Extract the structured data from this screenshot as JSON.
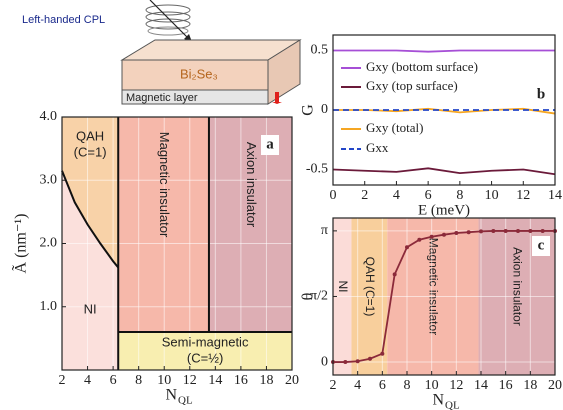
{
  "schematic": {
    "light_label": "Left-handed CPL",
    "material_label": "Bi₂Se₃",
    "layer_label": "Magnetic layer"
  },
  "chart_data": [
    {
      "type": "phase",
      "panel_label": "a",
      "xlabel": "N",
      "xlabel_sub": "QL",
      "ylabel": "Ã (nm⁻¹)",
      "xlim": [
        2,
        20
      ],
      "ylim": [
        0,
        4
      ],
      "grid": true,
      "xticks": [
        2,
        4,
        6,
        8,
        10,
        12,
        14,
        16,
        18,
        20
      ],
      "yticks": [
        {
          "value": 1,
          "label": "1.0"
        },
        {
          "value": 2,
          "label": "2.0"
        },
        {
          "value": 3,
          "label": "3.0"
        },
        {
          "value": 4,
          "label": "4.0"
        }
      ],
      "boundary_curve": {
        "x": [
          2,
          2.5,
          3,
          4,
          5,
          6,
          6.4
        ],
        "y": [
          3.15,
          2.9,
          2.65,
          2.3,
          2.0,
          1.72,
          1.62
        ]
      },
      "vertical_boundaries": [
        6.4,
        13.5
      ],
      "horizontal_boundary": 0.6,
      "regions": [
        {
          "label": [
            "QAH",
            "(C=1)"
          ],
          "color": "#f8d2a8"
        },
        {
          "label": [
            "NI"
          ],
          "color": "#fbe0dc"
        },
        {
          "label": [
            "Magnetic insulator"
          ],
          "color": "#f6b8aa"
        },
        {
          "label": [
            "Axion insulator"
          ],
          "color": "#ddaeb4"
        },
        {
          "label": [
            "Semi-magnetic",
            "(C=½)"
          ],
          "color": "#f8eeb0"
        }
      ]
    },
    {
      "type": "line",
      "panel_label": "b",
      "xlabel": "E (meV)",
      "ylabel": "G",
      "xlim": [
        0,
        14
      ],
      "ylim": [
        -0.63,
        0.63
      ],
      "grid": false,
      "xticks": [
        0,
        2,
        4,
        6,
        8,
        10,
        12,
        14
      ],
      "yticks": [
        -0.5,
        0,
        0.5
      ],
      "x": [
        0,
        2,
        4,
        6,
        8,
        10,
        12,
        14
      ],
      "series": [
        {
          "name": "Gxy (bottom surface)",
          "color": "#a64fd6",
          "dash": false,
          "values": [
            0.5,
            0.5,
            0.5,
            0.49,
            0.5,
            0.5,
            0.5,
            0.5
          ]
        },
        {
          "name": "Gxy (top surface)",
          "color": "#6b1a3a",
          "dash": false,
          "values": [
            -0.5,
            -0.51,
            -0.52,
            -0.49,
            -0.53,
            -0.51,
            -0.5,
            -0.54
          ]
        },
        {
          "name": "Gxy (total)",
          "color": "#f5a623",
          "dash": false,
          "values": [
            0,
            0,
            -0.01,
            0.01,
            -0.02,
            0,
            0.01,
            -0.03
          ]
        },
        {
          "name": "Gxx",
          "color": "#2346c8",
          "dash": true,
          "values": [
            0,
            0,
            0,
            0,
            0,
            0,
            0,
            0
          ]
        }
      ]
    },
    {
      "type": "line",
      "panel_label": "c",
      "xlabel": "N",
      "xlabel_sub": "QL",
      "ylabel": "θ",
      "xlim": [
        2,
        20
      ],
      "ylim": [
        -0.31,
        3.45
      ],
      "grid": true,
      "markers": true,
      "xticks": [
        2,
        4,
        6,
        8,
        10,
        12,
        14,
        16,
        18,
        20
      ],
      "yticks": [
        0,
        {
          "value": 1.5708,
          "label": "π/2"
        },
        {
          "value": 3.1416,
          "label": "π"
        }
      ],
      "bands": [
        {
          "label": "NI",
          "color": "#fbdcd8",
          "x": [
            2,
            3.5
          ]
        },
        {
          "label": "QAH (C=1)",
          "color": "#f8cf9c",
          "x": [
            3.5,
            6.4
          ]
        },
        {
          "label": "Magnetic insulator",
          "color": "#f6b8aa",
          "x": [
            6.4,
            13.8
          ]
        },
        {
          "label": "Axion insulator",
          "color": "#ddaeb4",
          "x": [
            13.8,
            20
          ]
        }
      ],
      "x": [
        2,
        3,
        4,
        5,
        6,
        7,
        8,
        9,
        10,
        11,
        12,
        13,
        14,
        15,
        16,
        17,
        18,
        19,
        20
      ],
      "series": [
        {
          "name": "θ",
          "color": "#8b2a3a",
          "dash": false,
          "values": [
            0,
            0,
            0.02,
            0.08,
            0.2,
            2.1,
            2.75,
            2.93,
            3.0,
            3.05,
            3.09,
            3.11,
            3.13,
            3.14,
            3.14,
            3.14,
            3.14,
            3.14,
            3.14
          ]
        }
      ]
    }
  ]
}
